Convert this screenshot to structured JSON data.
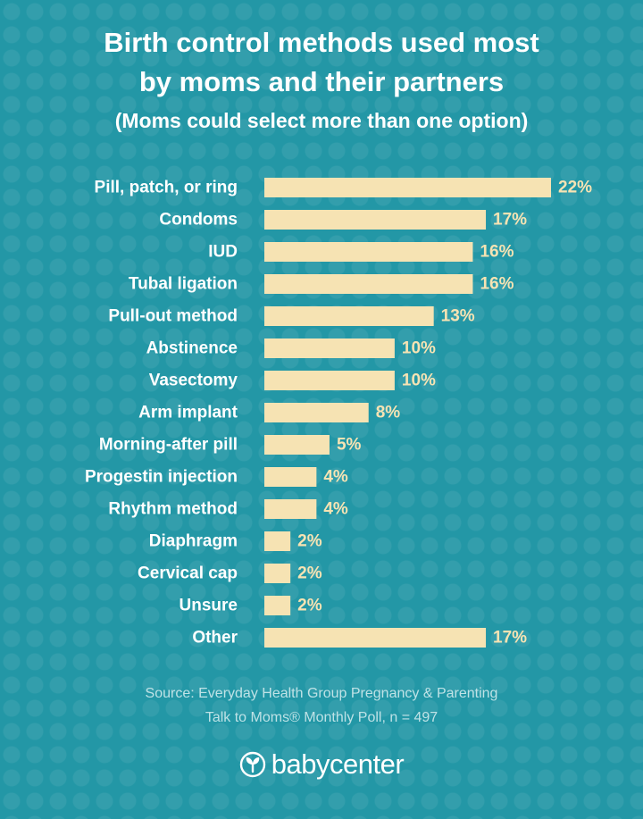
{
  "header": {
    "title_line1": "Birth control methods used most",
    "title_line2": "by moms and their partners",
    "subtitle": "(Moms could select more than one option)"
  },
  "chart_data": {
    "type": "bar",
    "orientation": "horizontal",
    "title": "Birth control methods used most by moms and their partners",
    "subtitle": "(Moms could select more than one option)",
    "unit": "%",
    "categories": [
      "Pill, patch, or ring",
      "Condoms",
      "IUD",
      "Tubal ligation",
      "Pull-out method",
      "Abstinence",
      "Vasectomy",
      "Arm implant",
      "Morning-after pill",
      "Progestin injection",
      "Rhythm method",
      "Diaphragm",
      "Cervical cap",
      "Unsure",
      "Other"
    ],
    "values": [
      22,
      17,
      16,
      16,
      13,
      10,
      10,
      8,
      5,
      4,
      4,
      2,
      2,
      2,
      17
    ],
    "value_labels": [
      "22%",
      "17%",
      "16%",
      "16%",
      "13%",
      "10%",
      "10%",
      "8%",
      "5%",
      "4%",
      "4%",
      "2%",
      "2%",
      "2%",
      "17%"
    ],
    "xlim": [
      0,
      22
    ],
    "grid": false
  },
  "footer": {
    "source_line1": "Source: Everyday Health Group Pregnancy & Parenting",
    "source_line2": "Talk to Moms® Monthly Poll, n = 497",
    "brand": "babycenter"
  },
  "colors": {
    "background": "#2397a6",
    "bar": "#f6e3b3",
    "text": "#ffffff",
    "source_text": "#bfe2e6"
  },
  "icons": {
    "brand_logo": "sprout-leaf-icon"
  }
}
